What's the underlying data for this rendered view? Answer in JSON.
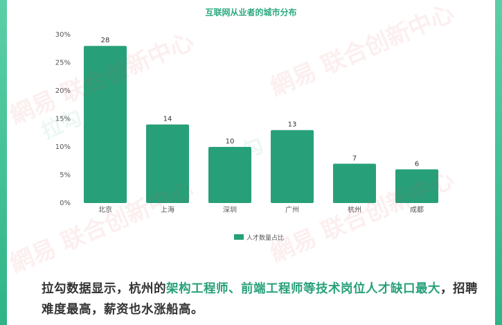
{
  "colors": {
    "bar": "#27a07a",
    "title": "#2daa7f",
    "highlight": "#27a07a",
    "text": "#333333"
  },
  "chart_data": {
    "type": "bar",
    "title": "互联网从业者的城市分布",
    "categories": [
      "北京",
      "上海",
      "深圳",
      "广州",
      "杭州",
      "成都"
    ],
    "series": [
      {
        "name": "人才数量占比",
        "values": [
          28,
          14,
          10,
          13,
          7,
          6
        ]
      }
    ],
    "data_labels": [
      "28",
      "14",
      "10",
      "13",
      "7",
      "6"
    ],
    "y_ticks": [
      "0%",
      "5%",
      "10%",
      "15%",
      "20%",
      "25%",
      "30%"
    ],
    "ylim": [
      0,
      30
    ],
    "y_unit": "%",
    "grid": false,
    "legend_position": "bottom"
  },
  "caption": {
    "part1": "拉勾数据显示，杭州的",
    "highlight": "架构工程师、前端工程师等技术岗位人才缺口最大",
    "part2": "，招聘难度最高，薪资也水涨船高。"
  },
  "watermarks": {
    "brand": "網易 联合创新中心",
    "logo": "拉勾"
  }
}
